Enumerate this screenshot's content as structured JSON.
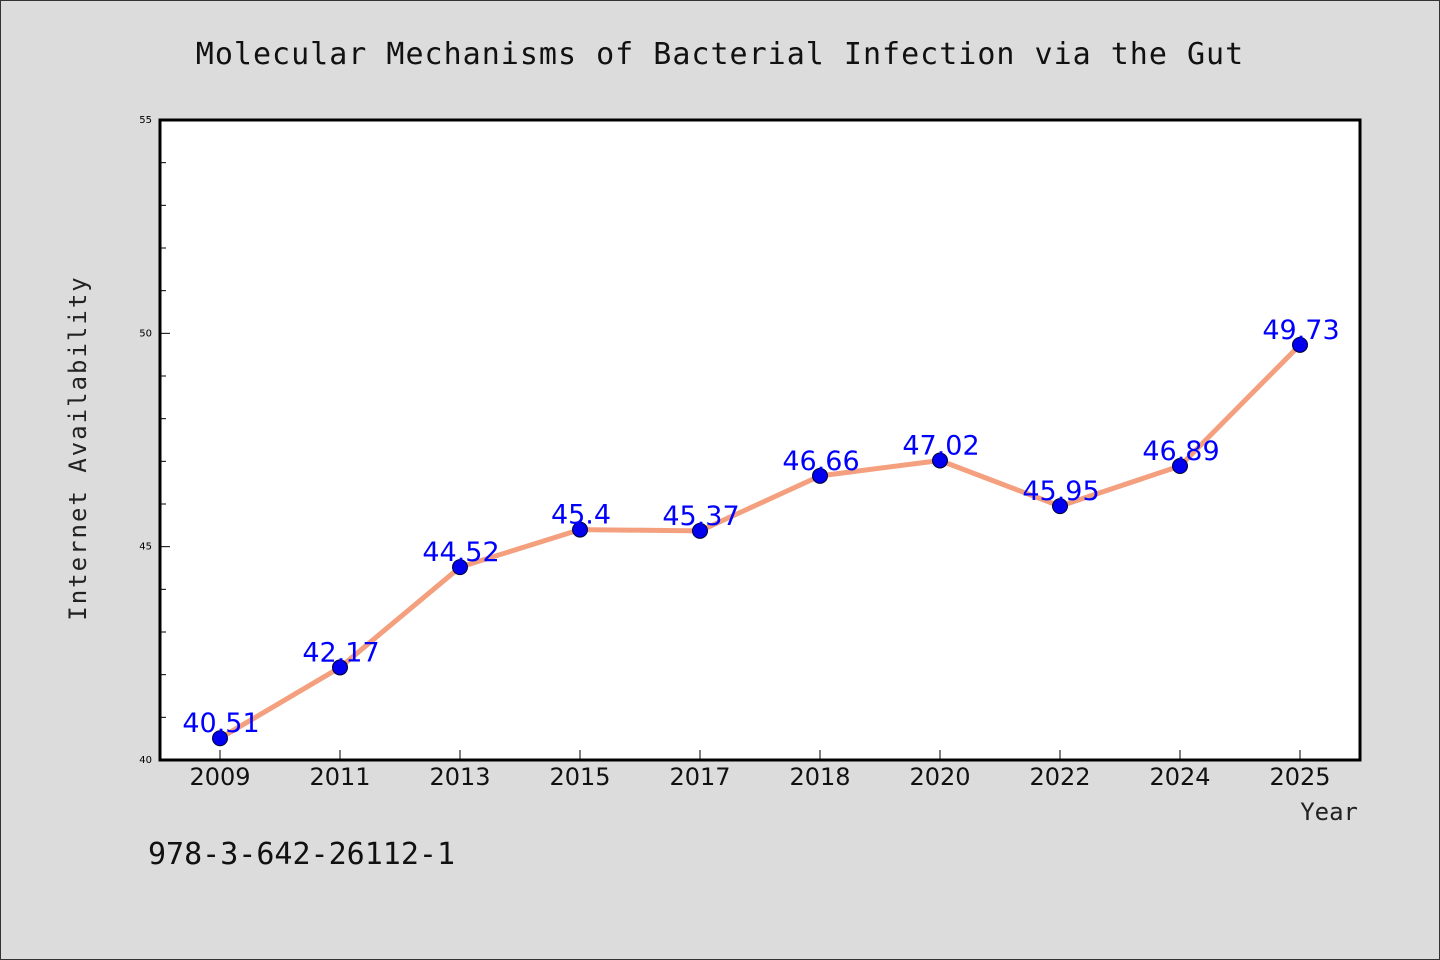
{
  "chart_data": {
    "type": "line",
    "title": "Molecular Mechanisms of Bacterial Infection via the Gut",
    "xlabel": "Year",
    "ylabel": "Internet Availability",
    "categories": [
      "2009",
      "2011",
      "2013",
      "2015",
      "2017",
      "2018",
      "2020",
      "2022",
      "2024",
      "2025"
    ],
    "values": [
      40.51,
      42.17,
      44.52,
      45.4,
      45.37,
      46.66,
      47.02,
      45.95,
      46.89,
      49.73
    ],
    "data_labels": [
      "40.51",
      "42.17",
      "44.52",
      "45.4",
      "45.37",
      "46.66",
      "47.02",
      "45.95",
      "46.89",
      "49.73"
    ],
    "ylim": [
      40,
      55
    ],
    "yticks": [
      40,
      45,
      50,
      55
    ],
    "ytick_labels": [
      "40",
      "45",
      "50",
      "55"
    ],
    "grid": false,
    "legend": "none",
    "colors": {
      "line": "#f4a07f",
      "marker": "#0000ee",
      "label": "#0000ff",
      "background": "#dcdcdc",
      "plot_background": "#ffffff"
    }
  },
  "footer_text": "978-3-642-26112-1"
}
